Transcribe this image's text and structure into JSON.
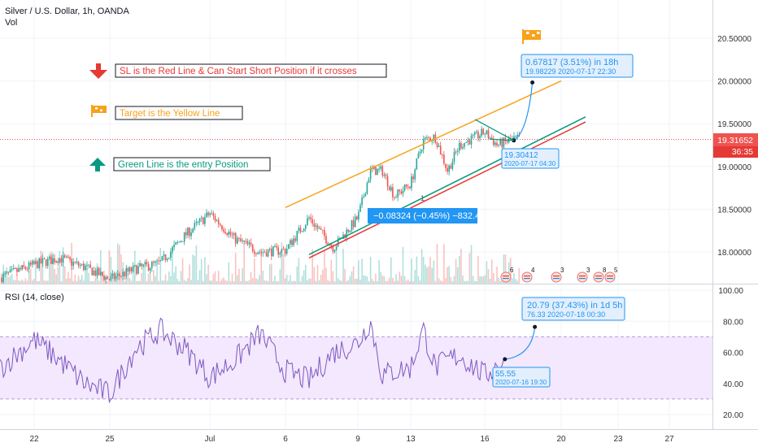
{
  "header": {
    "symbol_line": "Silver / U.S. Dollar, 1h, OANDA",
    "vol_label": "Vol"
  },
  "price_pane": {
    "y_ticks": [
      "20.50000",
      "20.00000",
      "19.50000",
      "19.00000",
      "18.50000",
      "18.00000"
    ],
    "last_price": "19.31652",
    "countdown": "36:35"
  },
  "annotations": {
    "sl_text": "SL is the Red Line & Can Start Short Position if it crosses",
    "target_text": "Target is the Yellow  Line",
    "entry_text": "Green Line is the entry Position",
    "measure_up_main": "0.67817 (3.51%) in 18h",
    "measure_up_sub": "19.98229   2020-07-17  22:30",
    "measure_low_value": "19.30412",
    "measure_low_date": "2020-07-17 04:30",
    "measure_down": "−0.08324 (−0.45%) −832.4",
    "dd_label": "1"
  },
  "events": [
    "6",
    "4",
    "3",
    "3",
    "8",
    "5"
  ],
  "rsi_pane": {
    "label": "RSI (14, close)",
    "y_ticks": [
      "100.00",
      "80.00",
      "60.00",
      "40.00",
      "20.00"
    ],
    "measure_main": "20.79 (37.43%) in 1d 5h",
    "measure_sub": "76.33     2020-07-18  00:30",
    "low_value": "55.55",
    "low_date": "2020-07-16 19:30"
  },
  "x_axis": {
    "ticks": [
      "22",
      "25",
      "Jul",
      "6",
      "9",
      "13",
      "16",
      "20",
      "23",
      "27"
    ]
  },
  "colors": {
    "up": "#26a69a",
    "down": "#ef5350",
    "target": "#f7a21b",
    "stop": "#e53935",
    "entry": "#089981",
    "measure": "#2196f3",
    "rsi": "#7e57c2",
    "rsi_band": "#f3e8fd"
  },
  "chart_data": [
    {
      "type": "candlestick",
      "title": "Silver / U.S. Dollar, 1h, OANDA",
      "x_range": [
        "2020-06-19",
        "2020-07-28"
      ],
      "ylim": [
        17.8,
        20.75
      ],
      "price_axis": "right",
      "last_price": 19.31652,
      "anchor_closes": [
        [
          "2020-06-19",
          17.7
        ],
        [
          "2020-06-22",
          17.85
        ],
        [
          "2020-06-23",
          17.93
        ],
        [
          "2020-06-24",
          17.82
        ],
        [
          "2020-06-25",
          17.68
        ],
        [
          "2020-06-26",
          17.8
        ],
        [
          "2020-06-29",
          17.87
        ],
        [
          "2020-06-30",
          18.2
        ],
        [
          "2020-07-01",
          18.45
        ],
        [
          "2020-07-02",
          18.15
        ],
        [
          "2020-07-03",
          18.0
        ],
        [
          "2020-07-06",
          18.02
        ],
        [
          "2020-07-07",
          18.4
        ],
        [
          "2020-07-08",
          18.05
        ],
        [
          "2020-07-09",
          18.4
        ],
        [
          "2020-07-09 12:00",
          18.95
        ],
        [
          "2020-07-10",
          18.95
        ],
        [
          "2020-07-10 12:00",
          18.65
        ],
        [
          "2020-07-13",
          18.8
        ],
        [
          "2020-07-13 12:00",
          19.3
        ],
        [
          "2020-07-14",
          19.35
        ],
        [
          "2020-07-14 12:00",
          18.95
        ],
        [
          "2020-07-15",
          19.25
        ],
        [
          "2020-07-16",
          19.4
        ],
        [
          "2020-07-16 12:00",
          19.25
        ],
        [
          "2020-07-17",
          19.3
        ],
        [
          "2020-07-17 06:00",
          19.32
        ]
      ],
      "trend_lines": [
        {
          "name": "Target (yellow)",
          "from": [
            "2020-07-06",
            18.52
          ],
          "to": [
            "2020-07-20",
            20.0
          ]
        },
        {
          "name": "Entry (green)",
          "from": [
            "2020-07-07",
            17.97
          ],
          "to": [
            "2020-07-21",
            19.58
          ]
        },
        {
          "name": "Stop loss (red)",
          "from": [
            "2020-07-07",
            17.93
          ],
          "to": [
            "2020-07-21",
            19.52
          ]
        }
      ],
      "measurements": [
        {
          "from": [
            "2020-07-17 04:30",
            19.30412
          ],
          "to": [
            "2020-07-17 22:30",
            19.98229
          ],
          "change": 0.67817,
          "change_pct": 3.51,
          "bars": "18h"
        },
        {
          "change": -0.08324,
          "change_pct": -0.45,
          "ticks": -832.4
        }
      ]
    },
    {
      "type": "line",
      "title": "RSI (14, close)",
      "ylim": [
        12,
        100
      ],
      "band": [
        30,
        70
      ],
      "anchor_values": [
        [
          "2020-06-19",
          50
        ],
        [
          "2020-06-22",
          68
        ],
        [
          "2020-06-23",
          55
        ],
        [
          "2020-06-24",
          40
        ],
        [
          "2020-06-25",
          33
        ],
        [
          "2020-06-26",
          62
        ],
        [
          "2020-06-29",
          74
        ],
        [
          "2020-06-30",
          62
        ],
        [
          "2020-07-01",
          44
        ],
        [
          "2020-07-02",
          55
        ],
        [
          "2020-07-03",
          72
        ],
        [
          "2020-07-06",
          48
        ],
        [
          "2020-07-07",
          42
        ],
        [
          "2020-07-08",
          60
        ],
        [
          "2020-07-09",
          66
        ],
        [
          "2020-07-09 12:00",
          80
        ],
        [
          "2020-07-10",
          45
        ],
        [
          "2020-07-10 12:00",
          48
        ],
        [
          "2020-07-13",
          50
        ],
        [
          "2020-07-13 12:00",
          75
        ],
        [
          "2020-07-14",
          50
        ],
        [
          "2020-07-14 12:00",
          55
        ],
        [
          "2020-07-15",
          58
        ],
        [
          "2020-07-16",
          45
        ],
        [
          "2020-07-16 19:30",
          55.55
        ]
      ],
      "measurement": {
        "from": [
          "2020-07-16 19:30",
          55.55
        ],
        "to": [
          "2020-07-18 00:30",
          76.33
        ],
        "change": 20.79,
        "change_pct": 37.43,
        "duration": "1d 5h"
      }
    }
  ]
}
